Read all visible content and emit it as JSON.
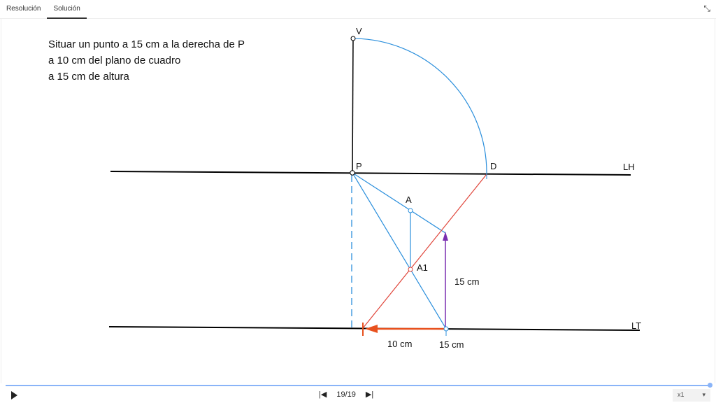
{
  "tabs": [
    {
      "label": "Resolución",
      "active": false
    },
    {
      "label": "Solución",
      "active": true
    }
  ],
  "statement": [
    "Situar un punto a 15 cm a la derecha de P",
    "a 10 cm del plano de cuadro",
    "a 15 cm de altura"
  ],
  "labels": {
    "V": "V",
    "P": "P",
    "D": "D",
    "LH": "LH",
    "LT": "LT",
    "A": "A",
    "A1": "A1",
    "height": "15 cm",
    "depth": "10 cm",
    "right": "15 cm"
  },
  "colors": {
    "construction": "#2b8fdc",
    "red": "#e0453a",
    "orange": "#e8511e",
    "purple": "#7a2fb0"
  },
  "player": {
    "page": "19/19",
    "speed": "x1",
    "progress": 1.0
  }
}
